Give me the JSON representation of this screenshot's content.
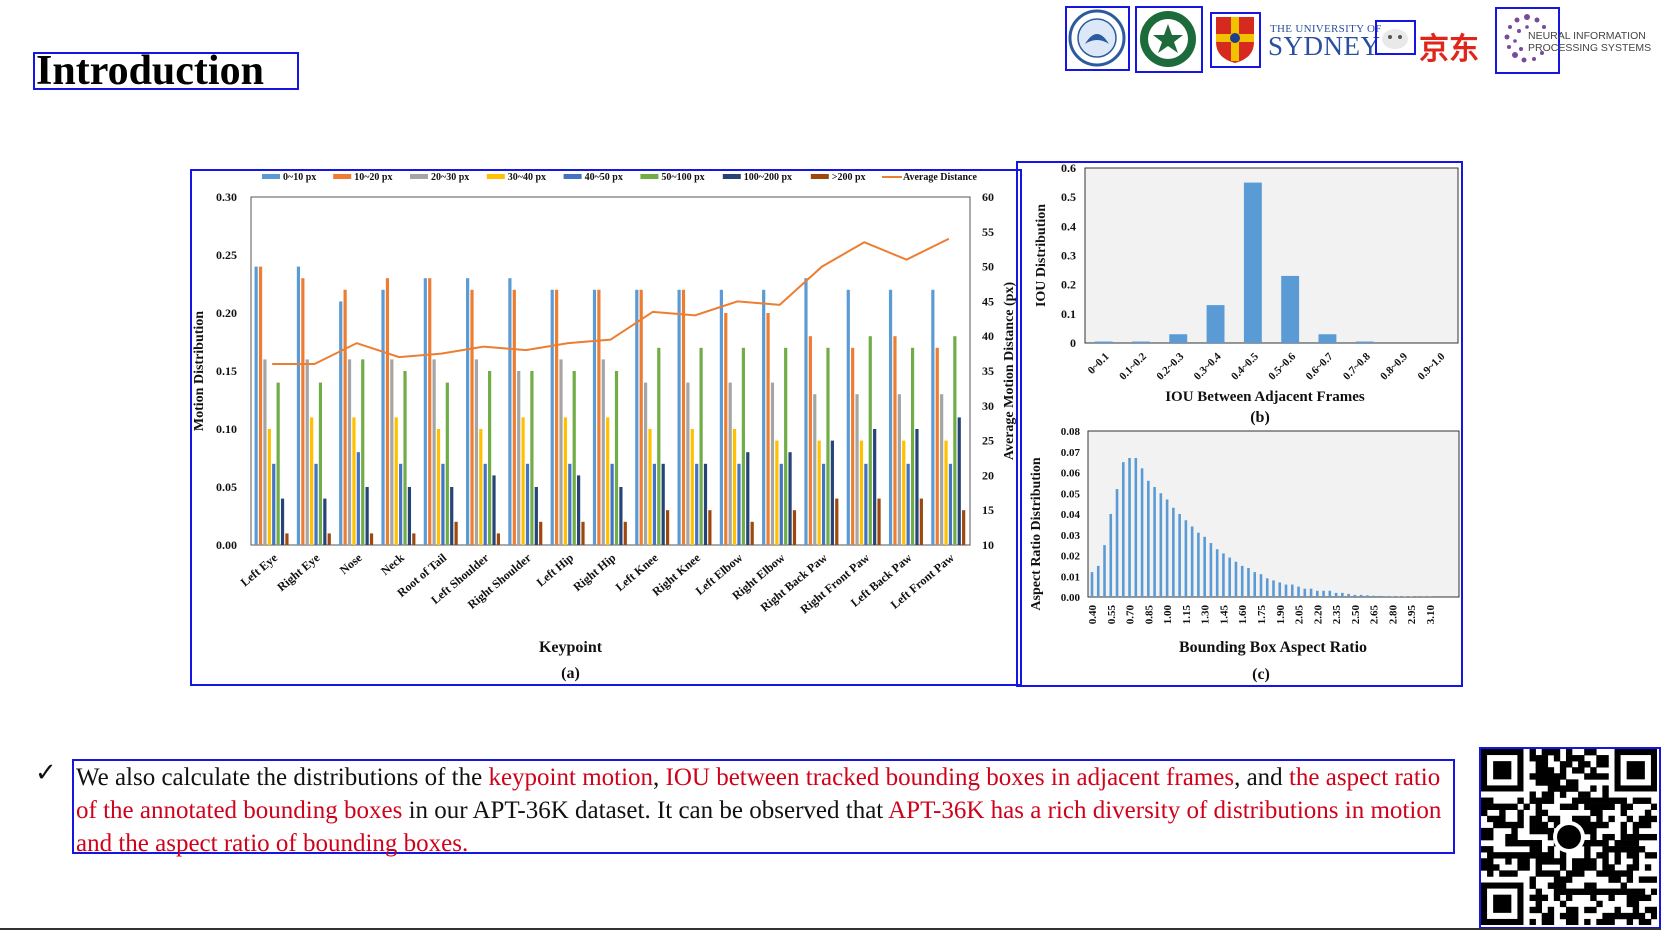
{
  "slide": {
    "title": "Introduction",
    "logos": {
      "university_small": "THE UNIVERSITY OF",
      "university_big": "SYDNEY",
      "jd": "京东",
      "neurips_line1": "NEURAL INFORMATION",
      "neurips_line2": "PROCESSING SYSTEMS"
    },
    "bullet": {
      "mark": "✓",
      "seg1": "We also calculate the distributions of the ",
      "seg2_red": "keypoint motion",
      "seg3": ", ",
      "seg4_red": "IOU between tracked bounding boxes in adjacent frames",
      "seg5": ", and ",
      "seg6_red": "the aspect ratio of the annotated bounding boxes",
      "seg7": " in our APT-36K dataset. It can be observed that ",
      "seg8_red": "APT-36K has a rich diversity of distributions in motion and the aspect ratio of bounding boxes."
    },
    "colors": {
      "annotation_box": "#1515e6",
      "highlight_text": "#d0021b"
    }
  },
  "chart_data": [
    {
      "type": "bar",
      "caption": "(a)",
      "xlabel": "Keypoint",
      "ylabel": "Motion Distribution",
      "y2label": "Average Motion Distance (px)",
      "ylim": [
        0,
        0.3
      ],
      "y2lim": [
        10,
        60
      ],
      "yticks": [
        "0.00",
        "0.05",
        "0.10",
        "0.15",
        "0.20",
        "0.25",
        "0.30"
      ],
      "y2ticks": [
        "10",
        "15",
        "20",
        "25",
        "30",
        "35",
        "40",
        "45",
        "50",
        "55",
        "60"
      ],
      "legend_position": "top",
      "categories": [
        "Left Eye",
        "Right Eye",
        "Nose",
        "Neck",
        "Root of Tail",
        "Left Shoulder",
        "Right Shoulder",
        "Left Hip",
        "Right Hip",
        "Left Knee",
        "Right Knee",
        "Left Elbow",
        "Right Elbow",
        "Right Back Paw",
        "Right Front Paw",
        "Left Back Paw",
        "Left Front Paw"
      ],
      "series": [
        {
          "name": "0~10 px",
          "color": "#5b9bd5",
          "values": [
            0.24,
            0.24,
            0.21,
            0.22,
            0.23,
            0.23,
            0.23,
            0.22,
            0.22,
            0.22,
            0.22,
            0.22,
            0.22,
            0.23,
            0.22,
            0.22,
            0.22
          ]
        },
        {
          "name": "10~20 px",
          "color": "#ed7d31",
          "values": [
            0.24,
            0.23,
            0.22,
            0.23,
            0.23,
            0.22,
            0.22,
            0.22,
            0.22,
            0.22,
            0.22,
            0.2,
            0.2,
            0.18,
            0.17,
            0.18,
            0.17
          ]
        },
        {
          "name": "20~30 px",
          "color": "#a5a5a5",
          "values": [
            0.16,
            0.16,
            0.16,
            0.16,
            0.16,
            0.16,
            0.15,
            0.16,
            0.16,
            0.14,
            0.14,
            0.14,
            0.14,
            0.13,
            0.13,
            0.13,
            0.13
          ]
        },
        {
          "name": "30~40 px",
          "color": "#ffc000",
          "values": [
            0.1,
            0.11,
            0.11,
            0.11,
            0.1,
            0.1,
            0.11,
            0.11,
            0.11,
            0.1,
            0.1,
            0.1,
            0.09,
            0.09,
            0.09,
            0.09,
            0.09
          ]
        },
        {
          "name": "40~50 px",
          "color": "#4472c4",
          "values": [
            0.07,
            0.07,
            0.08,
            0.07,
            0.07,
            0.07,
            0.07,
            0.07,
            0.07,
            0.07,
            0.07,
            0.07,
            0.07,
            0.07,
            0.07,
            0.07,
            0.07
          ]
        },
        {
          "name": "50~100 px",
          "color": "#70ad47",
          "values": [
            0.14,
            0.14,
            0.16,
            0.15,
            0.14,
            0.15,
            0.15,
            0.15,
            0.15,
            0.17,
            0.17,
            0.17,
            0.17,
            0.17,
            0.18,
            0.17,
            0.18
          ]
        },
        {
          "name": "100~200 px",
          "color": "#264478",
          "values": [
            0.04,
            0.04,
            0.05,
            0.05,
            0.05,
            0.06,
            0.05,
            0.06,
            0.05,
            0.07,
            0.07,
            0.08,
            0.08,
            0.09,
            0.1,
            0.1,
            0.11
          ]
        },
        {
          "name": ">200 px",
          "color": "#9e480e",
          "values": [
            0.01,
            0.01,
            0.01,
            0.01,
            0.02,
            0.01,
            0.02,
            0.02,
            0.02,
            0.03,
            0.03,
            0.02,
            0.03,
            0.04,
            0.04,
            0.04,
            0.03
          ]
        }
      ],
      "line": {
        "name": "Average Distance",
        "color": "#ed7d31",
        "axis": "right",
        "values": [
          36,
          36,
          39,
          37,
          37.5,
          38.5,
          38,
          39,
          39.5,
          43.5,
          43,
          45,
          44.5,
          50,
          53.5,
          51,
          54
        ]
      }
    },
    {
      "type": "bar",
      "caption": "(b)",
      "xlabel": "IOU Between Adjacent Frames",
      "ylabel": "IOU Distribution",
      "ylim": [
        0,
        0.6
      ],
      "yticks": [
        "0",
        "0.1",
        "0.2",
        "0.3",
        "0.4",
        "0.5",
        "0.6"
      ],
      "categories": [
        "0~0.1",
        "0.1~0.2",
        "0.2~0.3",
        "0.3~0.4",
        "0.4~0.5",
        "0.5~0.6",
        "0.6~0.7",
        "0.7~0.8",
        "0.8~0.9",
        "0.9~1.0"
      ],
      "values": [
        0.005,
        0.005,
        0.03,
        0.13,
        0.55,
        0.23,
        0.03,
        0.005,
        0,
        0
      ],
      "color": "#5b9bd5"
    },
    {
      "type": "bar",
      "caption": "(c)",
      "xlabel": "Bounding Box Aspect Ratio",
      "ylabel": "Aspect Ratio Distribution",
      "ylim": [
        0,
        0.08
      ],
      "yticks": [
        "0.00",
        "0.01",
        "0.02",
        "0.03",
        "0.04",
        "0.05",
        "0.06",
        "0.07",
        "0.08"
      ],
      "xtick_labels": [
        "0.40",
        "0.55",
        "0.70",
        "0.85",
        "1.00",
        "1.15",
        "1.30",
        "1.45",
        "1.60",
        "1.75",
        "1.90",
        "2.05",
        "2.20",
        "2.35",
        "2.50",
        "2.65",
        "2.80",
        "2.95",
        "3.10"
      ],
      "x_start": 0.4,
      "x_step": 0.05,
      "values": [
        0.012,
        0.015,
        0.025,
        0.04,
        0.052,
        0.065,
        0.067,
        0.067,
        0.062,
        0.056,
        0.053,
        0.05,
        0.047,
        0.043,
        0.04,
        0.037,
        0.034,
        0.031,
        0.029,
        0.026,
        0.023,
        0.021,
        0.019,
        0.017,
        0.015,
        0.014,
        0.012,
        0.011,
        0.009,
        0.008,
        0.007,
        0.006,
        0.006,
        0.005,
        0.004,
        0.004,
        0.003,
        0.003,
        0.003,
        0.002,
        0.002,
        0.0015,
        0.001,
        0.001,
        0.0008,
        0.0006,
        0.0005,
        0.0004,
        0.0003,
        0.0003,
        0.0002,
        0.0002,
        0.0001,
        0.0001,
        0.0001
      ],
      "color": "#5b9bd5"
    }
  ]
}
